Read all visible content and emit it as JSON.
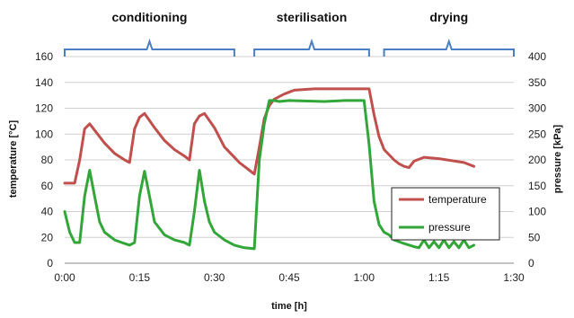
{
  "chart_data": {
    "type": "line",
    "xlabel": "time [h]",
    "ylabel": "temperature  [°C]",
    "y2label": "pressure [kPa]",
    "xlim": [
      0,
      90
    ],
    "ylim": [
      0,
      160
    ],
    "y2lim": [
      0,
      400
    ],
    "x_tick_values": [
      0,
      15,
      30,
      45,
      60,
      75,
      90
    ],
    "x_tick_labels": [
      "0:00",
      "0:15",
      "0:30",
      "0:45",
      "1:00",
      "1:15",
      "1:30"
    ],
    "y_ticks": [
      0,
      20,
      40,
      60,
      80,
      100,
      120,
      140,
      160
    ],
    "y2_ticks": [
      0,
      50,
      100,
      150,
      200,
      250,
      300,
      350,
      400
    ],
    "grid": "horizontal",
    "legend_position": "right, lower middle",
    "phases": [
      {
        "label": "conditioning",
        "start": 0,
        "end": 34
      },
      {
        "label": "sterilisation",
        "start": 38,
        "end": 61
      },
      {
        "label": "drying",
        "start": 64,
        "end": 90
      }
    ],
    "series": [
      {
        "name": "temperature",
        "axis": "left",
        "color": "#c0504d",
        "x": [
          0,
          2,
          3,
          4,
          5,
          6,
          8,
          10,
          12,
          13,
          14,
          15,
          16,
          18,
          20,
          22,
          24,
          25,
          26,
          27,
          28,
          30,
          32,
          34,
          35,
          36,
          37,
          38,
          39,
          40,
          41,
          42,
          44,
          46,
          50,
          55,
          58,
          60,
          61,
          62,
          63,
          64,
          66,
          67,
          68,
          69,
          70,
          72,
          75,
          80,
          82
        ],
        "values": [
          62,
          62,
          80,
          104,
          108,
          103,
          93,
          85,
          80,
          78,
          104,
          113,
          116,
          105,
          95,
          88,
          83,
          80,
          108,
          114,
          116,
          105,
          90,
          82,
          78,
          75,
          72,
          69,
          90,
          112,
          122,
          127,
          131,
          134,
          135,
          135,
          135,
          135,
          135,
          115,
          98,
          88,
          80,
          77,
          75,
          74,
          79,
          82,
          81,
          78,
          75
        ]
      },
      {
        "name": "pressure",
        "axis": "right",
        "color": "#33a639",
        "x": [
          0,
          1,
          2,
          3,
          4,
          5,
          6,
          7,
          8,
          10,
          12,
          13,
          14,
          15,
          16,
          17,
          18,
          20,
          22,
          24,
          25,
          26,
          27,
          28,
          29,
          30,
          32,
          34,
          36,
          38,
          39,
          40,
          41,
          42,
          43,
          45,
          48,
          52,
          56,
          60,
          61,
          62,
          63,
          64,
          65,
          66,
          68,
          70,
          71,
          72,
          73,
          74,
          75,
          76,
          77,
          78,
          79,
          80,
          81,
          82
        ],
        "values": [
          100,
          60,
          40,
          40,
          130,
          180,
          130,
          80,
          60,
          45,
          38,
          35,
          40,
          130,
          178,
          130,
          80,
          55,
          45,
          40,
          35,
          100,
          180,
          120,
          80,
          60,
          45,
          35,
          30,
          28,
          200,
          270,
          315,
          315,
          313,
          315,
          314,
          313,
          315,
          315,
          230,
          120,
          75,
          60,
          55,
          45,
          38,
          32,
          30,
          45,
          30,
          42,
          30,
          45,
          30,
          42,
          30,
          45,
          30,
          35
        ]
      }
    ]
  }
}
